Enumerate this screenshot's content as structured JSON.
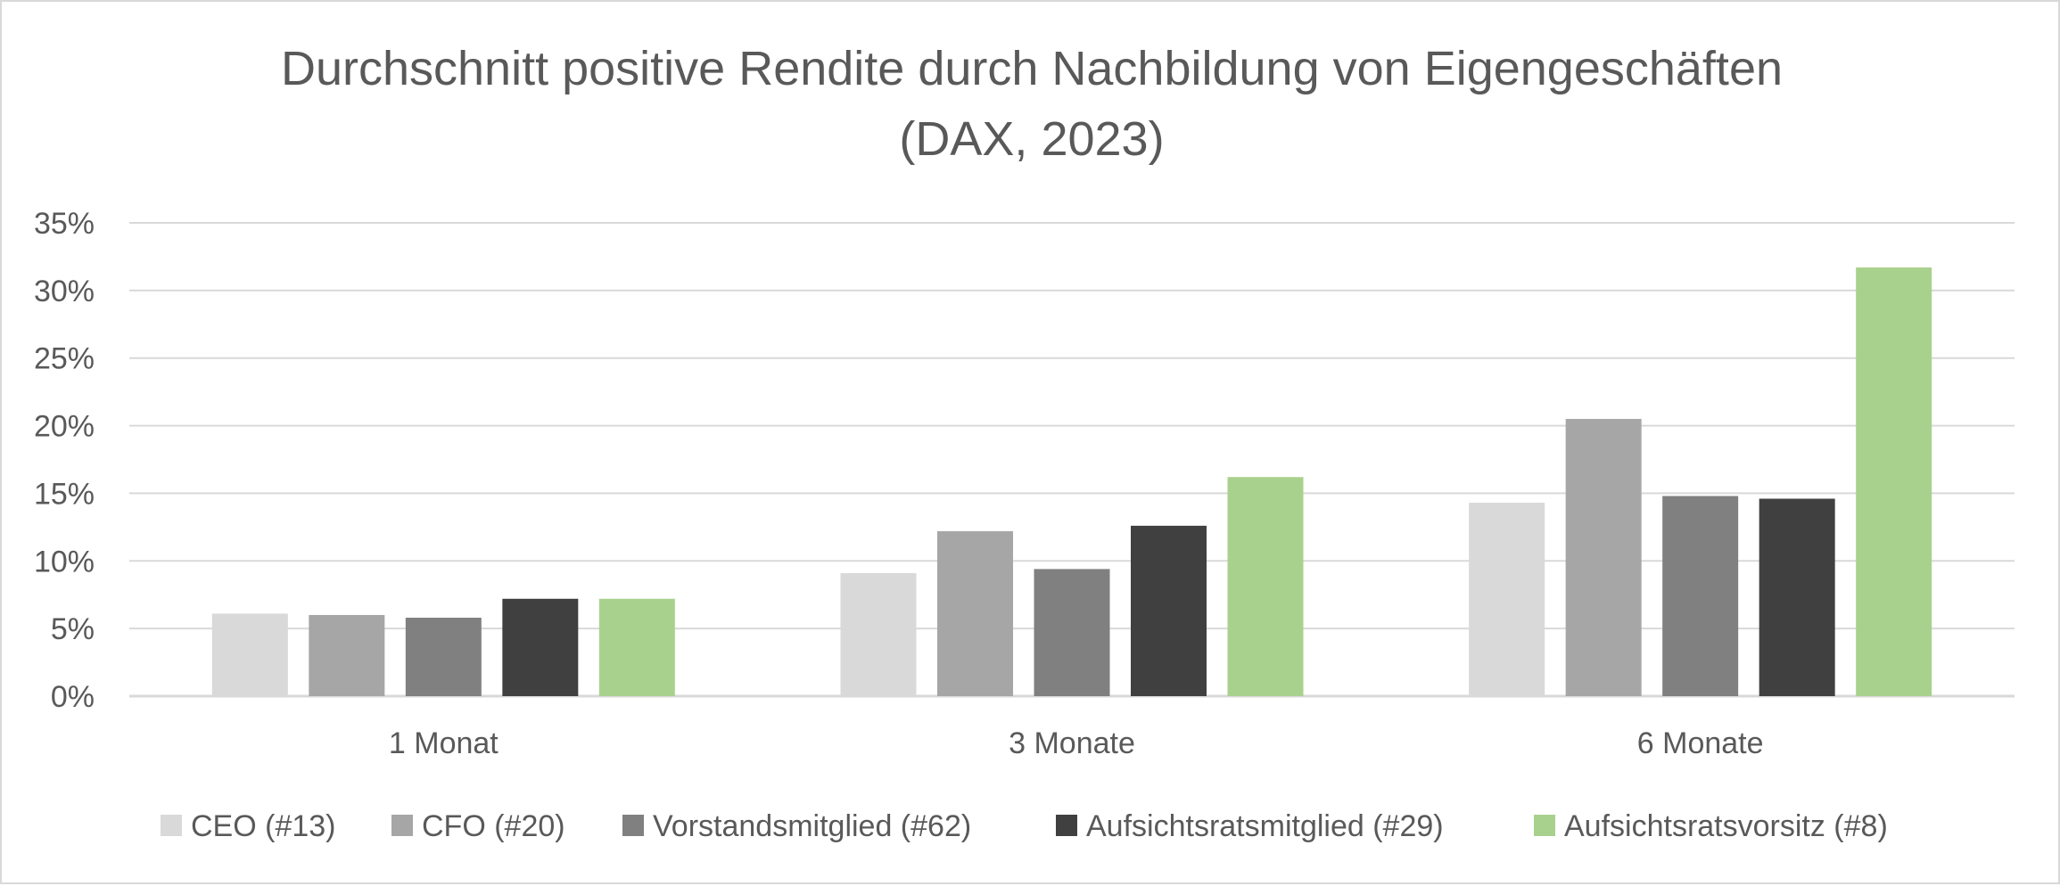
{
  "chart_data": {
    "type": "bar",
    "title": [
      "Durchschnitt positive Rendite durch Nachbildung von Eigengeschäften",
      "(DAX, 2023)"
    ],
    "xlabel": "",
    "ylabel": "",
    "categories": [
      "1 Monat",
      "3 Monate",
      "6 Monate"
    ],
    "ylim": [
      0,
      35
    ],
    "yticks": [
      0,
      5,
      10,
      15,
      20,
      25,
      30,
      35
    ],
    "ytick_labels": [
      "0%",
      "5%",
      "10%",
      "15%",
      "20%",
      "25%",
      "30%",
      "35%"
    ],
    "grid": true,
    "legend_position": "bottom",
    "series": [
      {
        "name": "CEO (#13)",
        "color": "#d9d9d9",
        "values": [
          6.1,
          9.1,
          14.3
        ]
      },
      {
        "name": "CFO (#20)",
        "color": "#a6a6a6",
        "values": [
          6.0,
          12.2,
          20.5
        ]
      },
      {
        "name": "Vorstandsmitglied (#62)",
        "color": "#808080",
        "values": [
          5.8,
          9.4,
          14.8
        ]
      },
      {
        "name": "Aufsichtsratsmitglied (#29)",
        "color": "#404040",
        "values": [
          7.2,
          12.6,
          14.6
        ]
      },
      {
        "name": "Aufsichtsratsvorsitz (#8)",
        "color": "#a9d18e",
        "values": [
          7.2,
          16.2,
          31.7
        ]
      }
    ]
  }
}
